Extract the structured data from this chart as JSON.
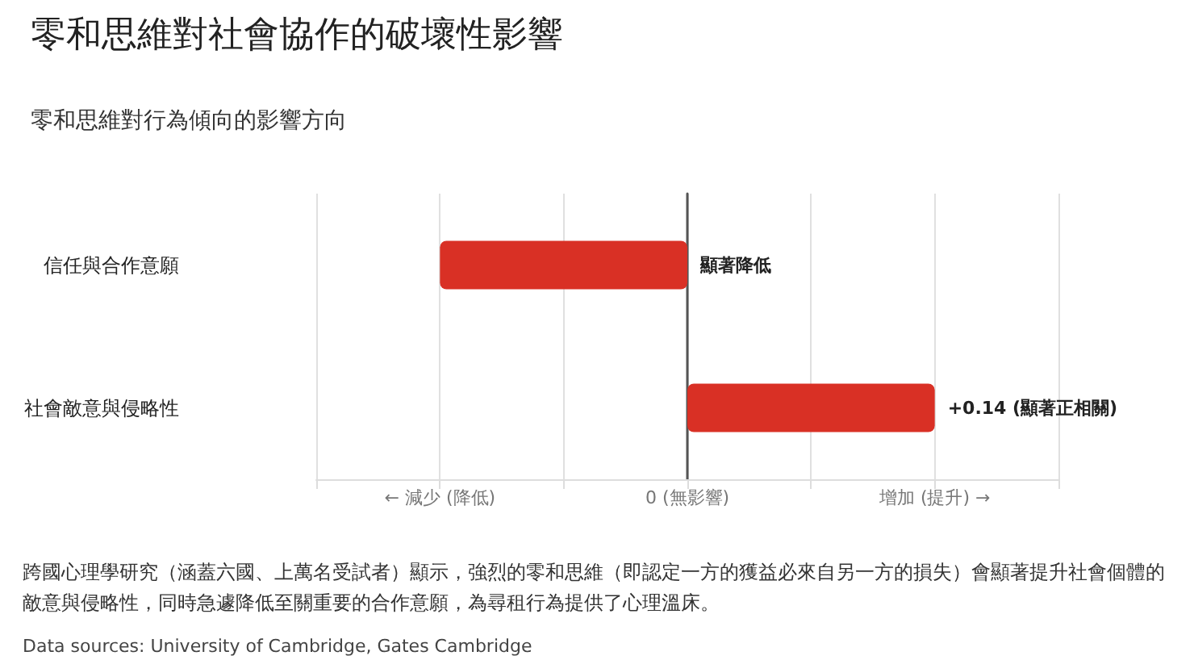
{
  "chart_data": {
    "type": "bar",
    "orientation": "horizontal",
    "title": "零和思維對社會協作的破壞性影響",
    "subtitle": "零和思維對行為傾向的影響方向",
    "categories": [
      "信任與合作意願",
      "社會敵意與侵略性"
    ],
    "values": [
      -0.14,
      0.14
    ],
    "color": "#d93025",
    "value_labels": [
      "顯著降低",
      "+0.14 (顯著正相關)"
    ],
    "xlim": [
      -0.21,
      0.21
    ],
    "xticks": [
      {
        "value": -0.21,
        "label": null
      },
      {
        "value": -0.14,
        "label": null
      },
      {
        "value": -0.07,
        "label": null
      },
      {
        "value": 0,
        "label": null
      },
      {
        "value": 0.07,
        "label": null
      },
      {
        "value": 0.14,
        "label": null
      },
      {
        "value": 0.21,
        "label": null
      }
    ],
    "tick_labels": "y",
    "grid": "x",
    "annotations": [
      "← 減少 (降低)",
      "0 (無影響)",
      "增加 (提升) →",
      "跨國心理學研究（涵蓋六國、上萬名受試者）顯示，強烈的零和思維（即認定一方的獲益必來自另一方的損失）會顯著提升社會個體的敵意與侵略性，同時急遽降低至關重要的合作意願，為尋租行為提供了心理溫床。",
      "Data sources: University of Cambridge, Gates Cambridge"
    ]
  }
}
